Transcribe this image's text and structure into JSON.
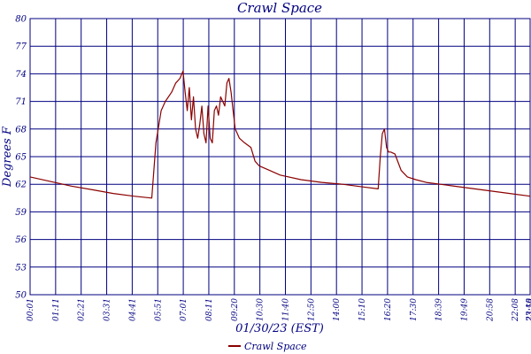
{
  "chart_data": {
    "type": "line",
    "title": "Crawl Space",
    "xlabel": "01/30/23 (EST)",
    "ylabel": "Degrees F",
    "ylim": [
      50,
      80
    ],
    "y_ticks": [
      "50",
      "53",
      "56",
      "59",
      "62",
      "65",
      "68",
      "71",
      "74",
      "77",
      "80"
    ],
    "x_ticks": [
      "00:01",
      "01:11",
      "02:21",
      "03:31",
      "04:41",
      "05:51",
      "07:01",
      "08:11",
      "09:20",
      "10:30",
      "11:40",
      "12:50",
      "14:00",
      "15:10",
      "16:20",
      "17:30",
      "18:39",
      "19:49",
      "20:58",
      "22:08",
      "23:18",
      "23:59"
    ],
    "grid": true,
    "legend_position": "bottom-center",
    "series": [
      {
        "name": "Crawl Space",
        "color": "#8B0000",
        "x_hours": [
          0.02,
          1.0,
          2.0,
          3.0,
          4.0,
          5.0,
          5.85,
          6.05,
          6.3,
          6.5,
          6.8,
          7.0,
          7.2,
          7.35,
          7.45,
          7.55,
          7.65,
          7.75,
          7.85,
          7.95,
          8.05,
          8.15,
          8.25,
          8.35,
          8.45,
          8.55,
          8.65,
          8.75,
          8.85,
          8.95,
          9.05,
          9.15,
          9.25,
          9.35,
          9.45,
          9.55,
          9.65,
          9.75,
          9.85,
          9.95,
          10.05,
          10.3,
          10.6,
          10.8,
          11.0,
          11.5,
          12.0,
          13.0,
          14.0,
          15.0,
          16.0,
          16.7,
          16.8,
          16.9,
          17.0,
          17.1,
          17.2,
          17.3,
          17.5,
          17.8,
          18.1,
          18.5,
          19.0,
          20.0,
          21.0,
          22.0,
          23.0,
          23.98
        ],
        "values": [
          62.8,
          62.3,
          61.8,
          61.4,
          61.0,
          60.7,
          60.5,
          66.5,
          70.0,
          71.0,
          72.0,
          73.0,
          73.5,
          74.3,
          72.0,
          70.0,
          72.5,
          69.0,
          71.5,
          68.0,
          67.0,
          68.5,
          70.5,
          67.5,
          66.5,
          70.5,
          67.0,
          66.5,
          70.0,
          70.5,
          69.5,
          71.5,
          71.0,
          70.5,
          73.0,
          73.5,
          72.0,
          70.0,
          68.0,
          67.5,
          67.0,
          66.5,
          66.0,
          64.5,
          64.0,
          63.5,
          63.0,
          62.5,
          62.2,
          62.0,
          61.7,
          61.5,
          65.0,
          67.5,
          68.0,
          66.0,
          65.5,
          65.5,
          65.3,
          63.5,
          62.8,
          62.5,
          62.2,
          61.9,
          61.6,
          61.3,
          61.0,
          60.7
        ]
      }
    ]
  }
}
